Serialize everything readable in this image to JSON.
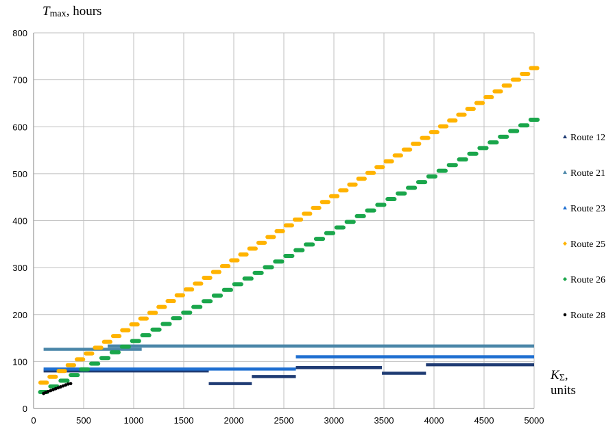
{
  "chart_data": {
    "type": "scatter",
    "y_axis_title": {
      "symbol": "T",
      "subscript": "max",
      "suffix": ", hours"
    },
    "x_axis_title": {
      "symbol": "K",
      "subscript": "Σ",
      "suffix": ",",
      "units": "units"
    },
    "xlim": [
      0,
      5000
    ],
    "ylim": [
      0,
      800
    ],
    "x_ticks": [
      0,
      500,
      1000,
      1500,
      2000,
      2500,
      3000,
      3500,
      4000,
      4500,
      5000
    ],
    "y_ticks": [
      0,
      100,
      200,
      300,
      400,
      500,
      600,
      700,
      800
    ],
    "grid": true,
    "legend_position": "right",
    "series": [
      {
        "name": "Route 12",
        "marker": "triangle",
        "color": "#1f3b73",
        "segments": [
          [
            100,
            1750,
            80
          ],
          [
            1750,
            2180,
            53
          ],
          [
            2180,
            2620,
            68
          ],
          [
            2620,
            3480,
            87
          ],
          [
            3480,
            3920,
            75
          ],
          [
            3920,
            5000,
            93
          ]
        ]
      },
      {
        "name": "Route 21",
        "marker": "triangle",
        "color": "#4a86a8",
        "segments": [
          [
            100,
            1080,
            126
          ],
          [
            740,
            5000,
            133
          ]
        ]
      },
      {
        "name": "Route 23",
        "marker": "triangle",
        "color": "#1f6fd1",
        "segments": [
          [
            100,
            2620,
            84
          ],
          [
            2620,
            5000,
            110
          ]
        ]
      },
      {
        "name": "Route 25",
        "marker": "diamond",
        "color": "#ffb300",
        "line": {
          "x_start": 100,
          "y_start": 55,
          "x_end": 5000,
          "y_end": 725,
          "steps": 54
        }
      },
      {
        "name": "Route 26",
        "marker": "diamond",
        "color": "#1aa64b",
        "line": {
          "x_start": 100,
          "y_start": 35,
          "x_end": 5000,
          "y_end": 615,
          "steps": 48
        }
      },
      {
        "name": "Route 28",
        "marker": "circle",
        "color": "#000000",
        "points": [
          [
            100,
            32
          ],
          [
            120,
            34
          ],
          [
            145,
            36
          ],
          [
            170,
            38
          ],
          [
            195,
            40
          ],
          [
            220,
            42
          ],
          [
            245,
            44
          ],
          [
            270,
            46
          ],
          [
            295,
            48
          ],
          [
            320,
            50
          ],
          [
            345,
            52
          ],
          [
            370,
            53
          ]
        ]
      }
    ]
  }
}
